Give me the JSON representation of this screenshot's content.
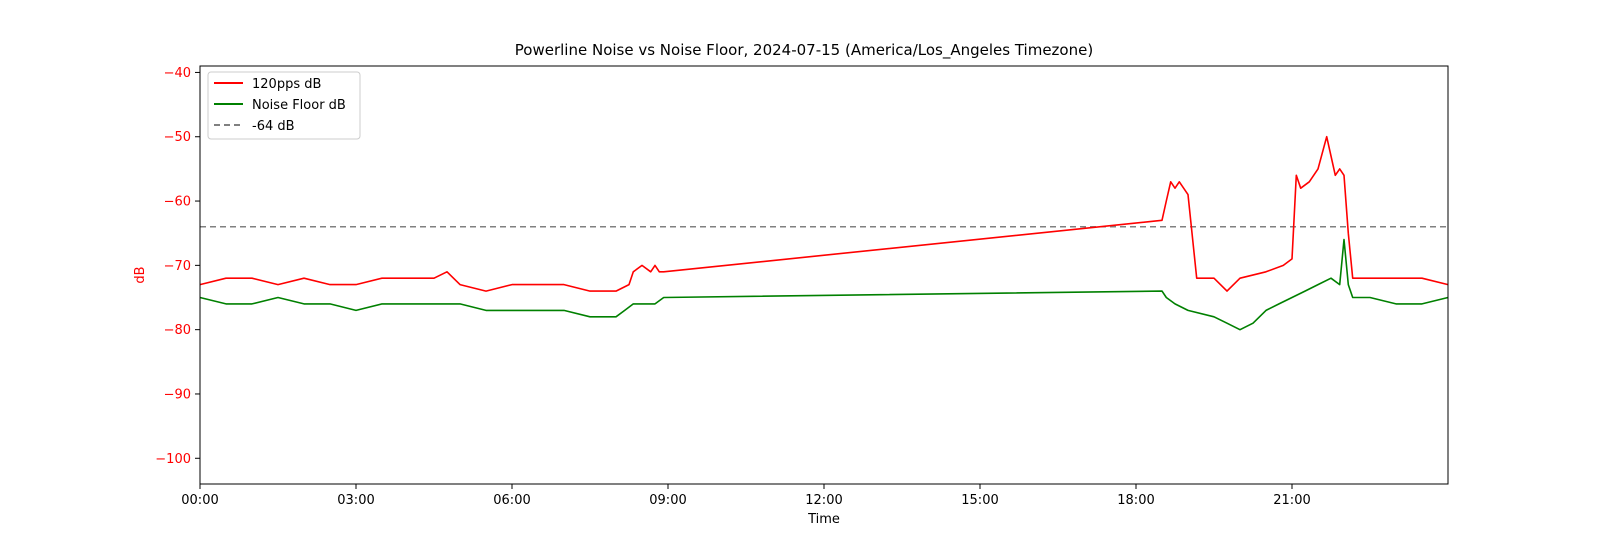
{
  "chart_data": {
    "type": "line",
    "title": "Powerline Noise vs Noise Floor, 2024-07-15 (America/Los_Angeles Timezone)",
    "xlabel": "Time",
    "ylabel": "dB",
    "xlim": [
      "00:00",
      "24:00"
    ],
    "ylim": [
      -104,
      -39
    ],
    "x_ticks": [
      "00:00",
      "03:00",
      "06:00",
      "09:00",
      "12:00",
      "15:00",
      "18:00",
      "21:00"
    ],
    "y_ticks": [
      -40,
      -50,
      -60,
      -70,
      -80,
      -90,
      -100
    ],
    "grid": false,
    "legend_position": "upper-left",
    "reference_line": {
      "name": "-64 dB",
      "value": -64,
      "color": "#808080",
      "style": "dashed"
    },
    "series": [
      {
        "name": "120pps dB",
        "color": "#ff0000",
        "x": [
          "00:00",
          "00:30",
          "01:00",
          "01:30",
          "02:00",
          "02:30",
          "03:00",
          "03:30",
          "04:00",
          "04:30",
          "04:45",
          "05:00",
          "05:30",
          "06:00",
          "06:30",
          "07:00",
          "07:30",
          "08:00",
          "08:15",
          "08:20",
          "08:30",
          "08:40",
          "08:45",
          "08:50",
          "08:55",
          "18:30",
          "18:35",
          "18:40",
          "18:45",
          "18:50",
          "19:00",
          "19:10",
          "19:20",
          "19:30",
          "19:45",
          "20:00",
          "20:30",
          "20:50",
          "21:00",
          "21:05",
          "21:10",
          "21:20",
          "21:30",
          "21:40",
          "21:50",
          "21:55",
          "22:00",
          "22:05",
          "22:10",
          "22:30",
          "23:00",
          "23:30",
          "24:00"
        ],
        "values": [
          -73,
          -72,
          -72,
          -73,
          -72,
          -73,
          -73,
          -72,
          -72,
          -72,
          -71,
          -73,
          -74,
          -73,
          -73,
          -73,
          -74,
          -74,
          -73,
          -71,
          -70,
          -71,
          -70,
          -71,
          -71,
          -63,
          -60,
          -57,
          -58,
          -57,
          -59,
          -72,
          -72,
          -72,
          -74,
          -72,
          -71,
          -70,
          -69,
          -56,
          -58,
          -57,
          -55,
          -50,
          -56,
          -55,
          -56,
          -65,
          -72,
          -72,
          -72,
          -72,
          -73
        ]
      },
      {
        "name": "Noise Floor dB",
        "color": "#008000",
        "x": [
          "00:00",
          "00:30",
          "01:00",
          "01:30",
          "02:00",
          "02:30",
          "03:00",
          "03:30",
          "04:00",
          "04:30",
          "05:00",
          "05:30",
          "06:00",
          "06:30",
          "07:00",
          "07:30",
          "08:00",
          "08:10",
          "08:20",
          "08:30",
          "08:45",
          "08:55",
          "18:30",
          "18:35",
          "18:45",
          "19:00",
          "19:30",
          "19:45",
          "20:00",
          "20:15",
          "20:30",
          "20:45",
          "21:00",
          "21:15",
          "21:30",
          "21:45",
          "21:55",
          "22:00",
          "22:05",
          "22:10",
          "22:30",
          "23:00",
          "23:30",
          "24:00"
        ],
        "values": [
          -75,
          -76,
          -76,
          -75,
          -76,
          -76,
          -77,
          -76,
          -76,
          -76,
          -76,
          -77,
          -77,
          -77,
          -77,
          -78,
          -78,
          -77,
          -76,
          -76,
          -76,
          -75,
          -74,
          -75,
          -76,
          -77,
          -78,
          -79,
          -80,
          -79,
          -77,
          -76,
          -75,
          -74,
          -73,
          -72,
          -73,
          -66,
          -73,
          -75,
          -75,
          -76,
          -76,
          -75
        ]
      }
    ]
  }
}
